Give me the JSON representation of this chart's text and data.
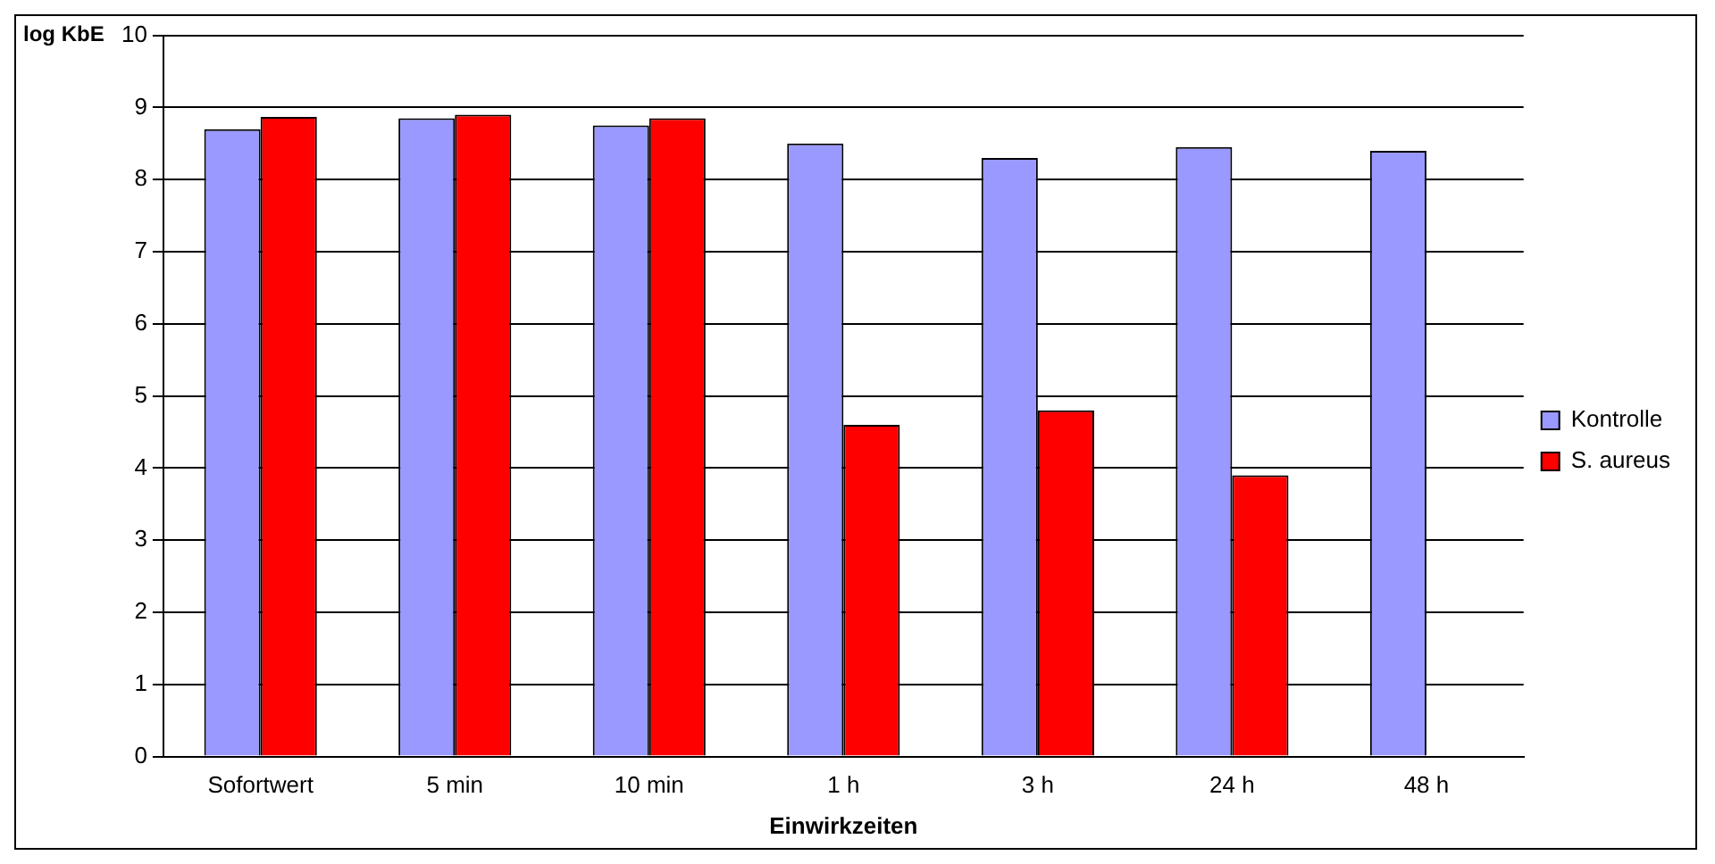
{
  "chart_data": {
    "type": "bar",
    "xlabel": "Einwirkzeiten",
    "ylabel": "log KbE",
    "categories": [
      "Sofortwert",
      "5 min",
      "10 min",
      "1 h",
      "3 h",
      "24 h",
      "48 h"
    ],
    "series": [
      {
        "name": "Kontrolle",
        "color": "#9999ff",
        "values": [
          8.7,
          8.85,
          8.75,
          8.5,
          8.3,
          8.45,
          8.4
        ]
      },
      {
        "name": "S. aureus",
        "color": "#ff0000",
        "values": [
          8.87,
          8.9,
          8.85,
          4.6,
          4.8,
          3.9,
          null
        ]
      }
    ],
    "ylim": [
      0,
      10
    ],
    "yticks": [
      0,
      1,
      2,
      3,
      4,
      5,
      6,
      7,
      8,
      9,
      10
    ],
    "grid": "y",
    "legend": "right"
  }
}
